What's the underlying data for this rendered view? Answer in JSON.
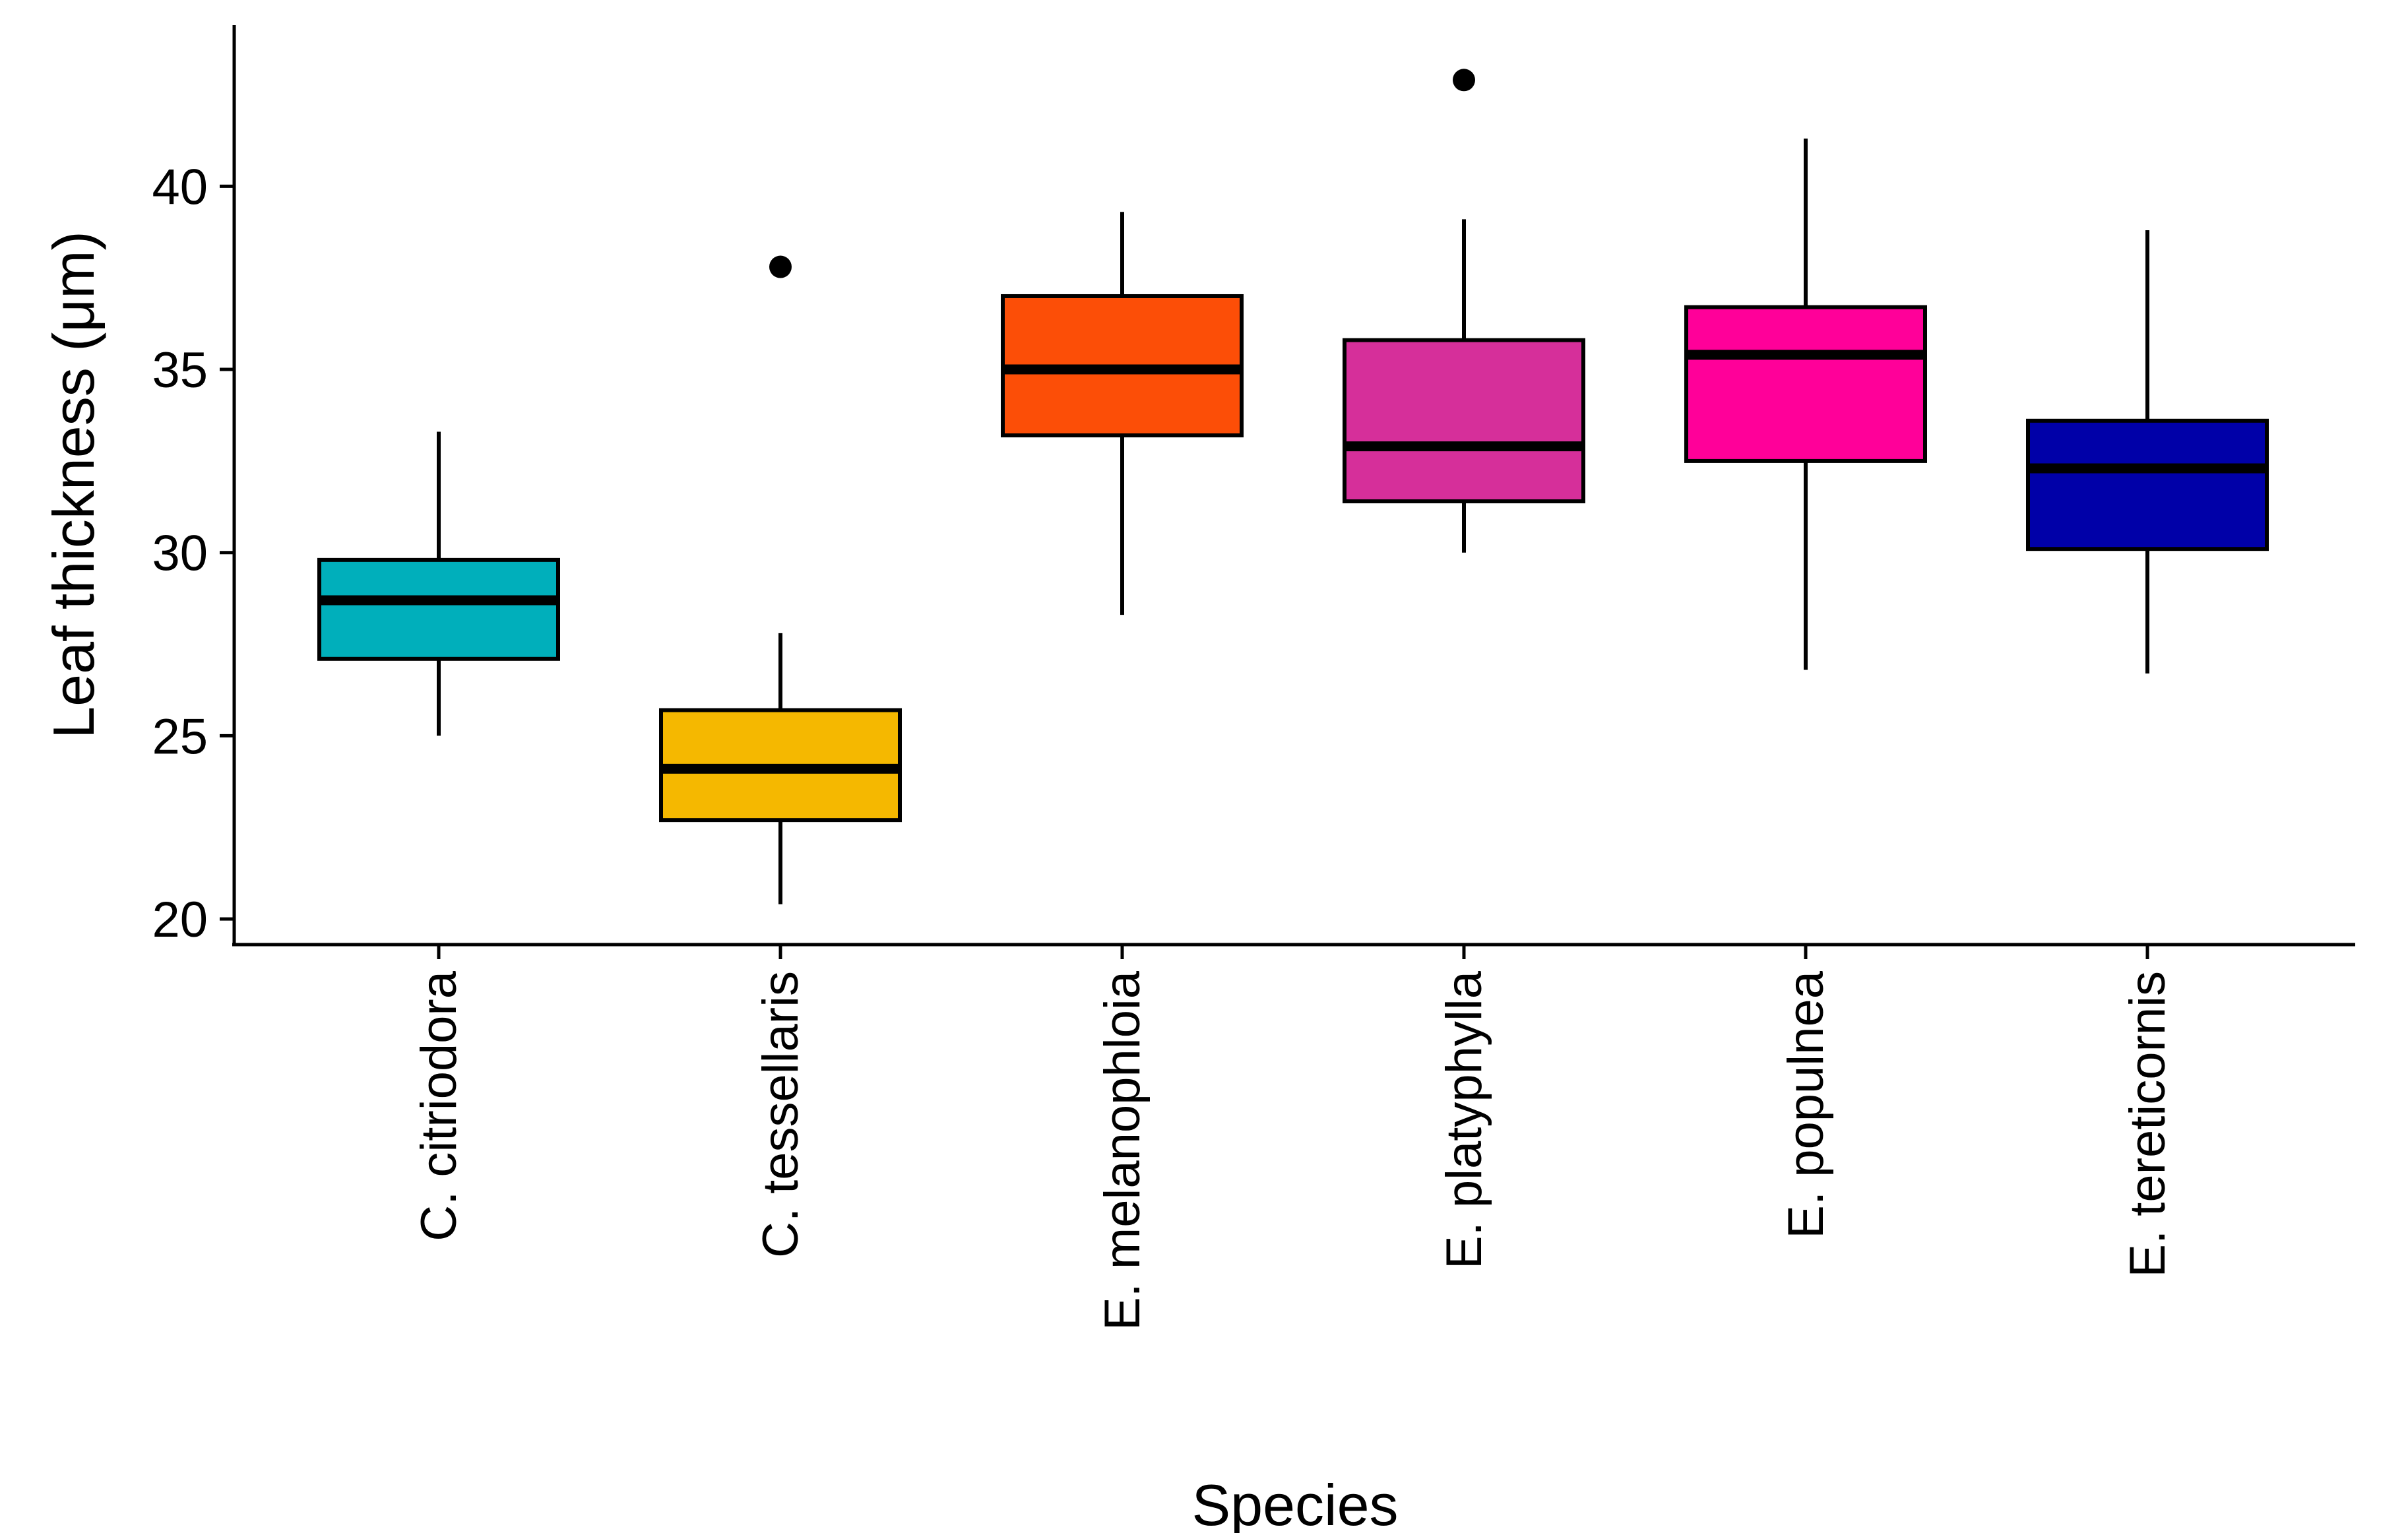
{
  "chart_data": {
    "type": "boxplot",
    "xlabel": "Species",
    "ylabel": "Leaf thickness (μm)",
    "ylim": [
      19.3,
      44.4
    ],
    "yticks": [
      20,
      25,
      30,
      35,
      40
    ],
    "grid": false,
    "legend": "none",
    "categories": [
      "C. citriodora",
      "C. tessellaris",
      "E. melanophloia",
      "E. platyphylla",
      "E. populnea",
      "E. tereticornis"
    ],
    "boxes": [
      {
        "name": "C. citriodora",
        "whisker_low": 25.0,
        "q1": 27.1,
        "median": 28.7,
        "q3": 29.8,
        "whisker_high": 33.3,
        "outliers": [],
        "color": "#00AFBB"
      },
      {
        "name": "C. tessellaris",
        "whisker_low": 20.4,
        "q1": 22.7,
        "median": 24.1,
        "q3": 25.7,
        "whisker_high": 27.8,
        "outliers": [
          37.8
        ],
        "color": "#F5B800"
      },
      {
        "name": "E. melanophloia",
        "whisker_low": 28.3,
        "q1": 33.2,
        "median": 35.0,
        "q3": 37.0,
        "whisker_high": 39.3,
        "outliers": [],
        "color": "#FC4E07"
      },
      {
        "name": "E. platyphylla",
        "whisker_low": 30.0,
        "q1": 31.4,
        "median": 32.9,
        "q3": 35.8,
        "whisker_high": 39.1,
        "outliers": [
          42.9
        ],
        "color": "#D62F9A"
      },
      {
        "name": "E. populnea",
        "whisker_low": 26.8,
        "q1": 32.5,
        "median": 35.4,
        "q3": 36.7,
        "whisker_high": 41.3,
        "outliers": [],
        "color": "#FF0099"
      },
      {
        "name": "E. tereticornis",
        "whisker_low": 26.7,
        "q1": 30.1,
        "median": 32.3,
        "q3": 33.6,
        "whisker_high": 38.8,
        "outliers": [],
        "color": "#0000A8"
      }
    ]
  }
}
